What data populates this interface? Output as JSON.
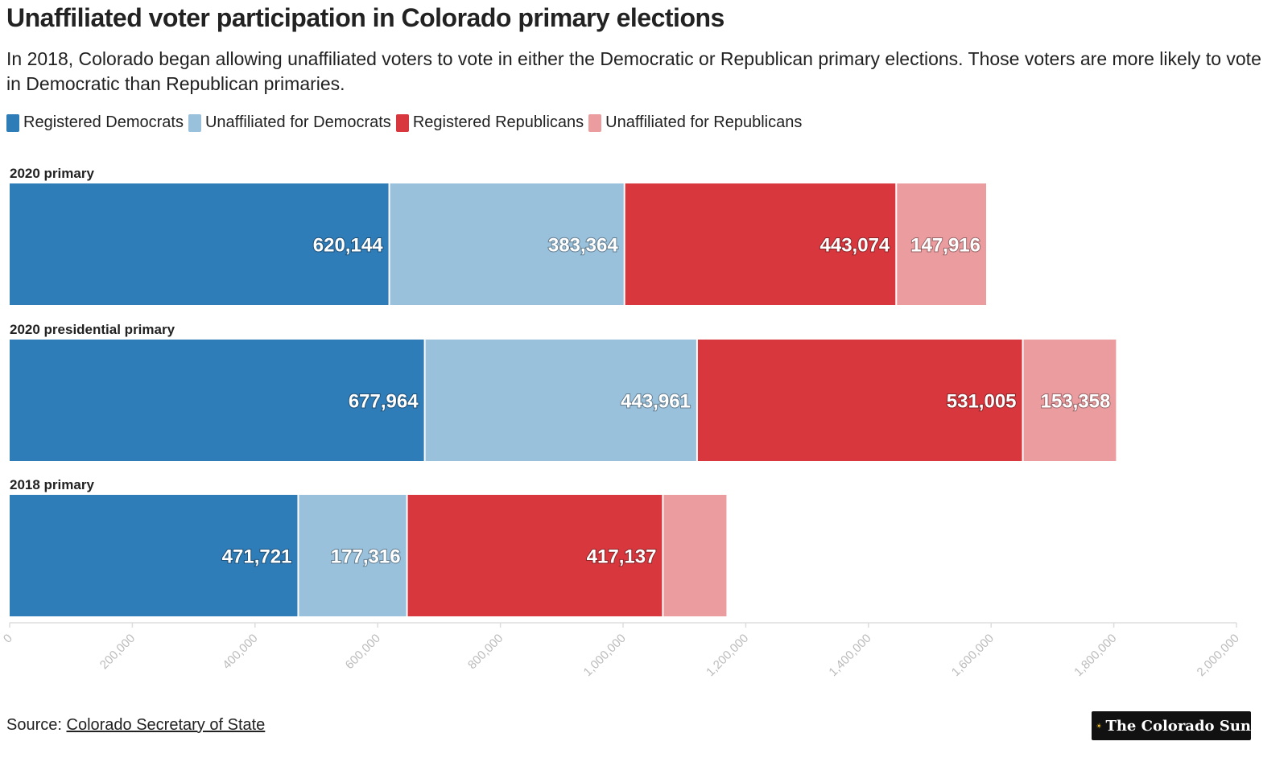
{
  "title": "Unaffiliated voter participation in Colorado primary elections",
  "subtitle": "In 2018, Colorado began allowing unaffiliated voters to vote in either the Democratic or Republican primary elections. Those voters are more likely to vote in Democratic than Republican primaries.",
  "legend": [
    {
      "label": "Registered Democrats",
      "color": "#2e7cb8"
    },
    {
      "label": "Unaffiliated for Democrats",
      "color": "#99c1dc"
    },
    {
      "label": "Registered Republicans",
      "color": "#d7373d"
    },
    {
      "label": "Unaffiliated for Republicans",
      "color": "#eb9c9f"
    }
  ],
  "source": {
    "prefix": "Source:",
    "link_text": "Colorado Secretary of State"
  },
  "logo": {
    "text": "The Colorado Sun",
    "icon": "sun-icon"
  },
  "chart_data": {
    "type": "bar",
    "orientation": "horizontal",
    "stacked": true,
    "title": "Unaffiliated voter participation in Colorado primary elections",
    "categories": [
      "2020 primary",
      "2020 presidential primary",
      "2018 primary"
    ],
    "series": [
      {
        "name": "Registered Democrats",
        "color": "#2e7cb8",
        "values": [
          620144,
          677964,
          471721
        ],
        "labels": [
          "620,144",
          "677,964",
          "471,721"
        ]
      },
      {
        "name": "Unaffiliated for Democrats",
        "color": "#99c1dc",
        "values": [
          383364,
          443961,
          177316
        ],
        "labels": [
          "383,364",
          "443,961",
          "177,316"
        ]
      },
      {
        "name": "Registered Republicans",
        "color": "#d7373d",
        "values": [
          443074,
          531005,
          417137
        ],
        "labels": [
          "443,074",
          "531,005",
          "417,137"
        ]
      },
      {
        "name": "Unaffiliated for Republicans",
        "color": "#eb9c9f",
        "values": [
          147916,
          153358,
          105000
        ],
        "labels": [
          "147,916",
          "153,358",
          ""
        ]
      }
    ],
    "xlim": [
      0,
      2000000
    ],
    "xticks": [
      0,
      200000,
      400000,
      600000,
      800000,
      1000000,
      1200000,
      1400000,
      1600000,
      1800000,
      2000000
    ],
    "xtick_labels": [
      "0",
      "200,000",
      "400,000",
      "600,000",
      "800,000",
      "1,000,000",
      "1,200,000",
      "1,400,000",
      "1,600,000",
      "1,800,000",
      "2,000,000"
    ],
    "xlabel": "",
    "ylabel": "",
    "grid": false,
    "legend_position": "top-left"
  }
}
